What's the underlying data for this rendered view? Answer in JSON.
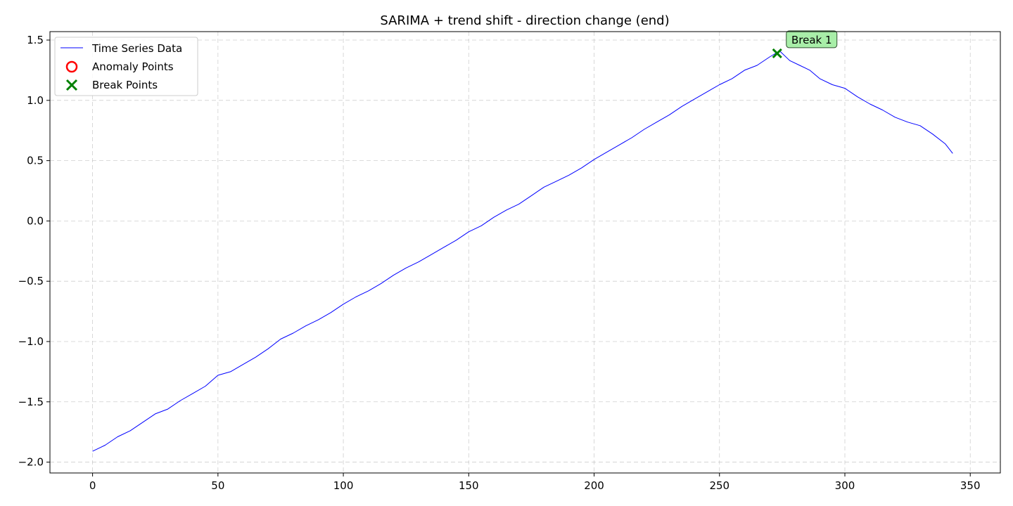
{
  "chart_data": {
    "type": "line",
    "title": "SARIMA + trend shift - direction change (end)",
    "xlabel": "",
    "ylabel": "",
    "xlim": [
      -17,
      362
    ],
    "ylim": [
      -2.09,
      1.57
    ],
    "xticks": [
      0,
      50,
      100,
      150,
      200,
      250,
      300,
      350
    ],
    "yticks": [
      -2.0,
      -1.5,
      -1.0,
      -0.5,
      0.0,
      0.5,
      1.0,
      1.5
    ],
    "ytick_labels": [
      "−2.0",
      "−1.5",
      "−1.0",
      "−0.5",
      "0.0",
      "0.5",
      "1.0",
      "1.5"
    ],
    "grid": true,
    "legend_position": "upper-left",
    "colors": {
      "series": "#0000ff",
      "anomaly": "#ff0000",
      "break": "#008000",
      "annotation_bg": "#a8eea8"
    },
    "series": [
      {
        "name": "Time Series Data",
        "points": [
          [
            0,
            -1.91
          ],
          [
            5,
            -1.86
          ],
          [
            10,
            -1.79
          ],
          [
            15,
            -1.74
          ],
          [
            20,
            -1.67
          ],
          [
            25,
            -1.6
          ],
          [
            30,
            -1.56
          ],
          [
            35,
            -1.49
          ],
          [
            40,
            -1.43
          ],
          [
            45,
            -1.37
          ],
          [
            50,
            -1.28
          ],
          [
            55,
            -1.25
          ],
          [
            60,
            -1.19
          ],
          [
            65,
            -1.13
          ],
          [
            70,
            -1.06
          ],
          [
            75,
            -0.98
          ],
          [
            80,
            -0.93
          ],
          [
            85,
            -0.87
          ],
          [
            90,
            -0.82
          ],
          [
            95,
            -0.76
          ],
          [
            100,
            -0.69
          ],
          [
            105,
            -0.63
          ],
          [
            110,
            -0.58
          ],
          [
            115,
            -0.52
          ],
          [
            120,
            -0.45
          ],
          [
            125,
            -0.39
          ],
          [
            130,
            -0.34
          ],
          [
            135,
            -0.28
          ],
          [
            140,
            -0.22
          ],
          [
            145,
            -0.16
          ],
          [
            150,
            -0.09
          ],
          [
            155,
            -0.04
          ],
          [
            160,
            0.03
          ],
          [
            165,
            0.09
          ],
          [
            170,
            0.14
          ],
          [
            175,
            0.21
          ],
          [
            180,
            0.28
          ],
          [
            185,
            0.33
          ],
          [
            190,
            0.38
          ],
          [
            195,
            0.44
          ],
          [
            200,
            0.51
          ],
          [
            205,
            0.57
          ],
          [
            210,
            0.63
          ],
          [
            215,
            0.69
          ],
          [
            220,
            0.76
          ],
          [
            225,
            0.82
          ],
          [
            230,
            0.88
          ],
          [
            235,
            0.95
          ],
          [
            240,
            1.01
          ],
          [
            245,
            1.07
          ],
          [
            250,
            1.13
          ],
          [
            255,
            1.18
          ],
          [
            260,
            1.25
          ],
          [
            265,
            1.29
          ],
          [
            270,
            1.36
          ],
          [
            274,
            1.41
          ],
          [
            278,
            1.33
          ],
          [
            282,
            1.29
          ],
          [
            286,
            1.25
          ],
          [
            290,
            1.18
          ],
          [
            295,
            1.13
          ],
          [
            300,
            1.1
          ],
          [
            305,
            1.03
          ],
          [
            310,
            0.97
          ],
          [
            315,
            0.92
          ],
          [
            320,
            0.86
          ],
          [
            325,
            0.82
          ],
          [
            330,
            0.79
          ],
          [
            335,
            0.72
          ],
          [
            340,
            0.64
          ],
          [
            343,
            0.56
          ]
        ]
      }
    ],
    "legend": [
      {
        "name": "Time Series Data",
        "marker": "line"
      },
      {
        "name": "Anomaly Points",
        "marker": "circle"
      },
      {
        "name": "Break Points",
        "marker": "x"
      }
    ],
    "anomaly_points": [],
    "break_points": [
      {
        "x": 273,
        "y": 1.39,
        "label": "Break 1"
      }
    ]
  }
}
